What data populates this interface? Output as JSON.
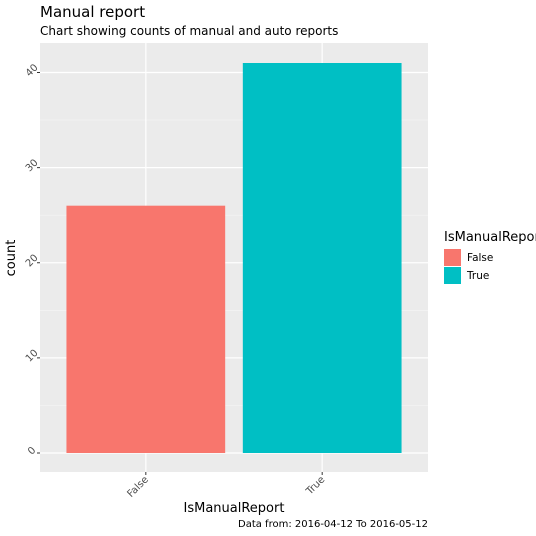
{
  "chart_data": {
    "type": "bar",
    "title": "Manual report",
    "subtitle": "Chart showing counts of manual and auto reports",
    "xlabel": "IsManualReport",
    "ylabel": "count",
    "caption": "Data from: 2016-04-12 To 2016-05-12",
    "categories": [
      "False",
      "True"
    ],
    "values": [
      26,
      41
    ],
    "colors": [
      "#F8766D",
      "#00BFC4"
    ],
    "ylim": [
      0,
      43
    ],
    "yticks": [
      0,
      10,
      20,
      30,
      40
    ],
    "grid": true,
    "legend": {
      "title": "IsManualReport",
      "position": "right",
      "entries": [
        "False",
        "True"
      ]
    }
  }
}
